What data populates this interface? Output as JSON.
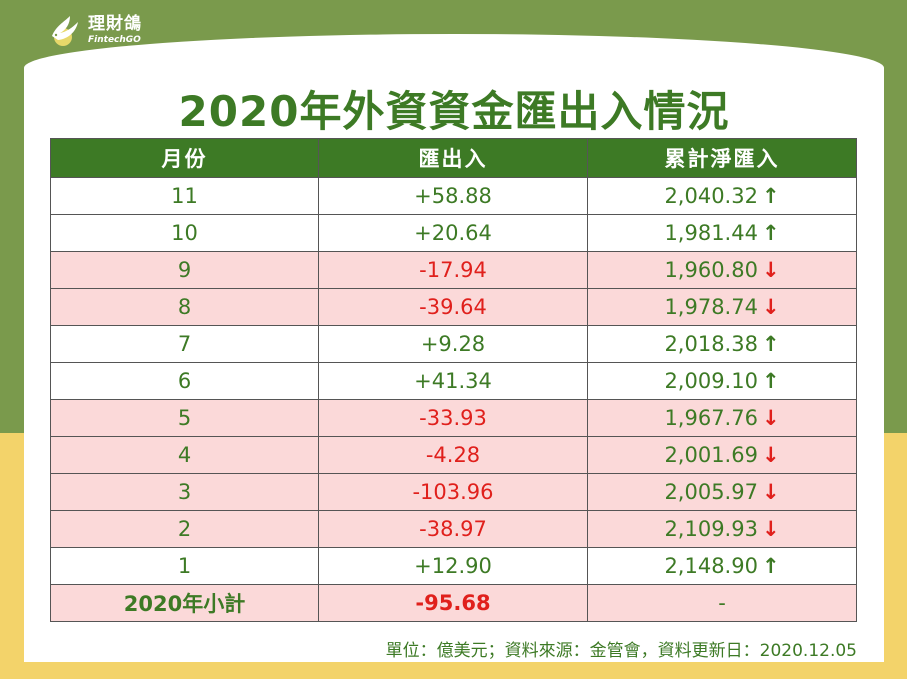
{
  "logo": {
    "name_cn": "理財鴿",
    "name_en": "FintechGO"
  },
  "title": "2020年外資資金匯出入情況",
  "table": {
    "headers": [
      "月份",
      "匯出入",
      "累計淨匯入"
    ],
    "rows": [
      {
        "month": "11",
        "flow": "+58.88",
        "cumulative": "2,040.32",
        "direction": "up"
      },
      {
        "month": "10",
        "flow": "+20.64",
        "cumulative": "1,981.44",
        "direction": "up"
      },
      {
        "month": "9",
        "flow": "-17.94",
        "cumulative": "1,960.80",
        "direction": "down"
      },
      {
        "month": "8",
        "flow": "-39.64",
        "cumulative": "1,978.74",
        "direction": "down"
      },
      {
        "month": "7",
        "flow": "+9.28",
        "cumulative": "2,018.38",
        "direction": "up"
      },
      {
        "month": "6",
        "flow": "+41.34",
        "cumulative": "2,009.10",
        "direction": "up"
      },
      {
        "month": "5",
        "flow": "-33.93",
        "cumulative": "1,967.76",
        "direction": "down"
      },
      {
        "month": "4",
        "flow": "-4.28",
        "cumulative": "2,001.69",
        "direction": "down"
      },
      {
        "month": "3",
        "flow": "-103.96",
        "cumulative": "2,005.97",
        "direction": "down"
      },
      {
        "month": "2",
        "flow": "-38.97",
        "cumulative": "2,109.93",
        "direction": "down"
      },
      {
        "month": "1",
        "flow": "+12.90",
        "cumulative": "2,148.90",
        "direction": "up"
      }
    ],
    "total": {
      "label": "2020年小計",
      "flow": "-95.68",
      "cumulative": "-"
    }
  },
  "arrows": {
    "up": "↑",
    "down": "↓"
  },
  "footnote": "單位：億美元；資料來源：金管會，資料更新日：2020.12.05",
  "colors": {
    "green": "#3d7a25",
    "red": "#e0201c",
    "pink_row": "#fbd9d9",
    "olive_bg": "#7a9a4c",
    "yellow_bg": "#f3d36a"
  }
}
